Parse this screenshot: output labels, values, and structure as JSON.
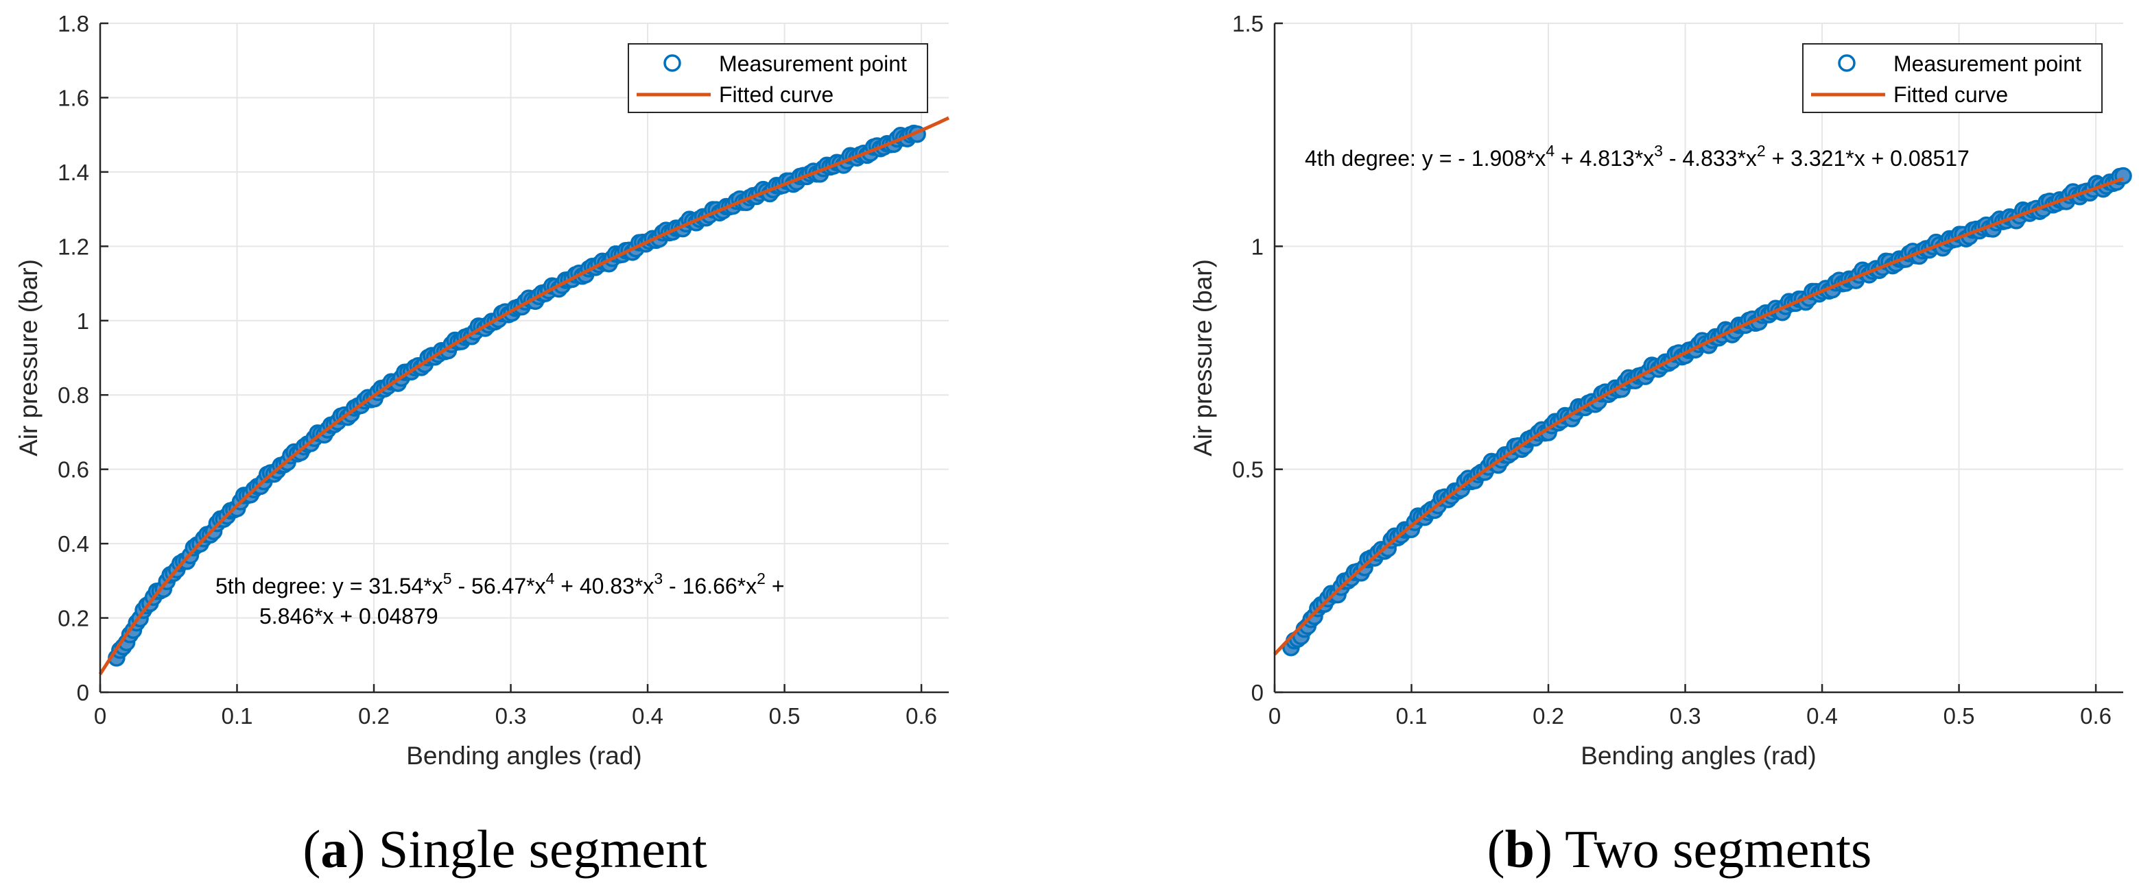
{
  "chart_data": [
    {
      "type": "scatter",
      "panel_tag": "a",
      "caption": "Single segment",
      "xlabel": "Bending angles (rad)",
      "ylabel": "Air pressure (bar)",
      "xlim": [
        0,
        0.62
      ],
      "ylim": [
        0,
        1.8
      ],
      "xticks": [
        0,
        0.1,
        0.2,
        0.3,
        0.4,
        0.5,
        0.6
      ],
      "xtick_labels": [
        "0",
        "0.1",
        "0.2",
        "0.3",
        "0.4",
        "0.5",
        "0.6"
      ],
      "yticks": [
        0,
        0.2,
        0.4,
        0.6,
        0.8,
        1.0,
        1.2,
        1.4,
        1.6,
        1.8
      ],
      "ytick_labels": [
        "0",
        "0.2",
        "0.4",
        "0.6",
        "0.8",
        "1",
        "1.2",
        "1.4",
        "1.6",
        "1.8"
      ],
      "grid": true,
      "legend": {
        "position": "top-right",
        "entries": [
          "Measurement point",
          "Fitted curve"
        ]
      },
      "annotation": {
        "line1": {
          "prefix": "5th degree:  y = 31.54*x",
          "e1": "5",
          "mid1": " - 56.47*x",
          "e2": "4",
          "mid2": " + 40.83*x",
          "e3": "3",
          "mid3": " - 16.66*x",
          "e4": "2",
          "suffix": " +"
        },
        "line2": "5.846*x + 0.04879"
      },
      "series": [
        {
          "name": "Measurement point",
          "style": "markers",
          "color": "#0072BD",
          "x_range": [
            0.012,
            0.597
          ],
          "n_points": 240
        },
        {
          "name": "Fitted curve",
          "style": "line",
          "color": "#D95319",
          "x_range": [
            0,
            0.62
          ],
          "coefficients_high_to_low": [
            31.54,
            -56.47,
            40.83,
            -16.66,
            5.846,
            0.04879
          ]
        }
      ]
    },
    {
      "type": "scatter",
      "panel_tag": "b",
      "caption": "Two segments",
      "xlabel": "Bending angles (rad)",
      "ylabel": "Air pressure (bar)",
      "xlim": [
        0,
        0.62
      ],
      "ylim": [
        0,
        1.5
      ],
      "xticks": [
        0,
        0.1,
        0.2,
        0.3,
        0.4,
        0.5,
        0.6
      ],
      "xtick_labels": [
        "0",
        "0.1",
        "0.2",
        "0.3",
        "0.4",
        "0.5",
        "0.6"
      ],
      "yticks": [
        0,
        0.5,
        1.0,
        1.5
      ],
      "ytick_labels": [
        "0",
        "0.5",
        "1",
        "1.5"
      ],
      "grid": true,
      "legend": {
        "position": "top-right",
        "entries": [
          "Measurement point",
          "Fitted curve"
        ]
      },
      "annotation": {
        "line1": {
          "prefix": "4th degree:  y = - 1.908*x",
          "e1": "4",
          "mid1": " + 4.813*x",
          "e2": "3",
          "mid2": " - 4.833*x",
          "e3": "2",
          "suffix": " + 3.321*x + 0.08517"
        }
      },
      "series": [
        {
          "name": "Measurement point",
          "style": "markers",
          "color": "#0072BD",
          "x_range": [
            0.012,
            0.62
          ],
          "n_points": 250
        },
        {
          "name": "Fitted curve",
          "style": "line",
          "color": "#D95319",
          "x_range": [
            0,
            0.62
          ],
          "coefficients_high_to_low": [
            -1.908,
            4.813,
            -4.833,
            3.321,
            0.08517
          ]
        }
      ]
    }
  ]
}
